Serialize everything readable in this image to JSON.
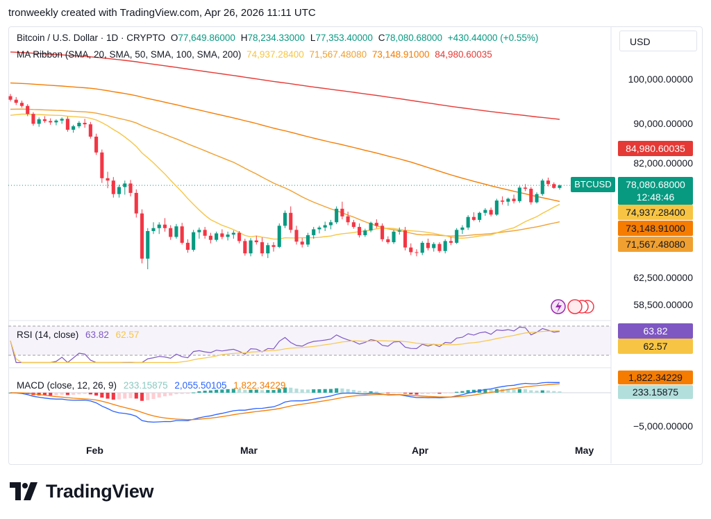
{
  "header": {
    "title": "tronweekly created with TradingView.com, Apr 26, 2026 11:11 UTC"
  },
  "legend": {
    "symbol": "Bitcoin / U.S. Dollar · 1D · CRYPTO",
    "open_label": "O",
    "open": "77,649.86000",
    "high_label": "H",
    "high": "78,234.33000",
    "low_label": "L",
    "low": "77,353.40000",
    "close_label": "C",
    "close": "78,080.68000",
    "change": "+430.44000 (+0.55%)",
    "ma_title": "MA Ribbon (SMA, 20, SMA, 50, SMA, 100, SMA, 200)",
    "ma20": "74,937.28400",
    "ma50": "71,567.48080",
    "ma100": "73,148.91000",
    "ma200": "84,980.60035"
  },
  "currency": "USD",
  "symbol_tag": "BTCUSD",
  "price_tags": {
    "ma200": "84,980.60035",
    "last": "78,080.68000",
    "countdown": "12:48:46",
    "ma20": "74,937.28400",
    "ma100": "73,148.91000",
    "ma50": "71,567.48080"
  },
  "rsi": {
    "title": "RSI (14, close)",
    "value": "63.82",
    "ma": "62.57"
  },
  "macd": {
    "title": "MACD (close, 12, 26, 9)",
    "hist": "233.15875",
    "macd": "2,055.50105",
    "signal": "1,822.34229",
    "axis_low": "−5,000.00000"
  },
  "months": [
    "Feb",
    "Mar",
    "Apr",
    "May"
  ],
  "brand": "TradingView",
  "colors": {
    "up": "#089981",
    "down": "#f23645",
    "ma20": "#f7c543",
    "ma50": "#f0a030",
    "ma100": "#f57c00",
    "ma200": "#e53935",
    "rsi": "#7e57c2"
  },
  "chart_data": {
    "type": "candlestick",
    "title": "Bitcoin / U.S. Dollar · 1D · CRYPTO",
    "y_ticks": [
      100000,
      90000,
      82000,
      62500,
      58500
    ],
    "y_tick_labels": [
      "100,000.00000",
      "90,000.00000",
      "82,000.00000",
      "62,500.00000",
      "58,500.00000"
    ],
    "x_labels": [
      "Feb",
      "Mar",
      "Apr",
      "May"
    ],
    "ylim": [
      57000,
      108000
    ],
    "candles_ohlc": [
      [
        96000,
        96500,
        94800,
        95200
      ],
      [
        95200,
        95800,
        94000,
        94500
      ],
      [
        94500,
        95000,
        93400,
        93800
      ],
      [
        93800,
        94200,
        91500,
        92000
      ],
      [
        92000,
        92400,
        89400,
        89800
      ],
      [
        89800,
        91200,
        89200,
        90800
      ],
      [
        90800,
        91500,
        90000,
        90400
      ],
      [
        90400,
        91000,
        89600,
        90100
      ],
      [
        90100,
        90800,
        89500,
        90500
      ],
      [
        90500,
        91200,
        89800,
        90900
      ],
      [
        90900,
        91400,
        88200,
        88600
      ],
      [
        88600,
        89600,
        88000,
        89300
      ],
      [
        89300,
        90400,
        88900,
        90000
      ],
      [
        90000,
        90900,
        89000,
        89700
      ],
      [
        89700,
        90200,
        86800,
        87200
      ],
      [
        87200,
        87800,
        83500,
        84000
      ],
      [
        84000,
        84600,
        78500,
        79300
      ],
      [
        79300,
        80400,
        77600,
        78900
      ],
      [
        78900,
        79500,
        76000,
        76600
      ],
      [
        76600,
        78200,
        76000,
        77800
      ],
      [
        77800,
        78900,
        76500,
        78400
      ],
      [
        78400,
        79000,
        76200,
        76800
      ],
      [
        76800,
        77400,
        72600,
        73300
      ],
      [
        73300,
        74000,
        64800,
        65600
      ],
      [
        65600,
        70800,
        63800,
        70300
      ],
      [
        70300,
        71800,
        69800,
        70800
      ],
      [
        70800,
        71800,
        69800,
        71400
      ],
      [
        71400,
        72500,
        70200,
        70800
      ],
      [
        70800,
        71300,
        68800,
        69300
      ],
      [
        69300,
        71500,
        69000,
        71100
      ],
      [
        71100,
        71700,
        68000,
        68300
      ],
      [
        68300,
        68900,
        66600,
        67100
      ],
      [
        67100,
        70500,
        66800,
        70100
      ],
      [
        70100,
        70900,
        69000,
        70500
      ],
      [
        70500,
        71000,
        69000,
        69500
      ],
      [
        69500,
        70000,
        68200,
        68800
      ],
      [
        68800,
        70200,
        68500,
        69900
      ],
      [
        69900,
        70600,
        68900,
        69300
      ],
      [
        69300,
        70200,
        68700,
        69700
      ],
      [
        69700,
        70400,
        69000,
        70000
      ],
      [
        70000,
        70300,
        68200,
        68600
      ],
      [
        68600,
        69000,
        66100,
        66500
      ],
      [
        66500,
        69100,
        66000,
        68700
      ],
      [
        68700,
        69500,
        68000,
        68400
      ],
      [
        68400,
        69200,
        66000,
        66500
      ],
      [
        66500,
        68300,
        65700,
        67900
      ],
      [
        67900,
        68400,
        66800,
        67600
      ],
      [
        67600,
        71600,
        67400,
        71200
      ],
      [
        71200,
        73800,
        70800,
        73400
      ],
      [
        73400,
        74500,
        70000,
        70500
      ],
      [
        70500,
        71200,
        68000,
        68500
      ],
      [
        68500,
        69100,
        67500,
        68000
      ],
      [
        68000,
        70000,
        67600,
        69600
      ],
      [
        69600,
        71000,
        69000,
        70600
      ],
      [
        70600,
        71200,
        69900,
        70900
      ],
      [
        70900,
        71900,
        70300,
        71300
      ],
      [
        71300,
        72200,
        70600,
        71800
      ],
      [
        71800,
        74500,
        71500,
        74100
      ],
      [
        74100,
        75300,
        72300,
        72800
      ],
      [
        72800,
        73600,
        71300,
        71800
      ],
      [
        71800,
        72200,
        70700,
        71000
      ],
      [
        71000,
        71600,
        69200,
        69600
      ],
      [
        69600,
        70700,
        69300,
        70400
      ],
      [
        70400,
        71900,
        70100,
        71700
      ],
      [
        71700,
        72300,
        70800,
        71200
      ],
      [
        71200,
        71600,
        68500,
        68900
      ],
      [
        68900,
        69400,
        68100,
        68400
      ],
      [
        68400,
        70500,
        68100,
        70200
      ],
      [
        70200,
        70900,
        69700,
        70400
      ],
      [
        70400,
        71000,
        67000,
        67500
      ],
      [
        67500,
        68200,
        66200,
        66700
      ],
      [
        66700,
        67200,
        66000,
        66600
      ],
      [
        66600,
        68600,
        66200,
        68300
      ],
      [
        68300,
        69000,
        67000,
        67400
      ],
      [
        67400,
        68400,
        66800,
        68100
      ],
      [
        68100,
        68400,
        66600,
        66900
      ],
      [
        66900,
        68900,
        66500,
        68600
      ],
      [
        68600,
        69300,
        67900,
        68300
      ],
      [
        68300,
        70800,
        68100,
        70500
      ],
      [
        70500,
        71300,
        69800,
        70900
      ],
      [
        70900,
        73000,
        70500,
        72700
      ],
      [
        72700,
        73500,
        72000,
        72200
      ],
      [
        72200,
        73600,
        71800,
        73400
      ],
      [
        73400,
        74200,
        72900,
        73900
      ],
      [
        73900,
        74300,
        72800,
        73100
      ],
      [
        73100,
        75800,
        72900,
        75500
      ],
      [
        75500,
        76200,
        74800,
        75300
      ],
      [
        75300,
        76000,
        74600,
        75800
      ],
      [
        75800,
        76500,
        75000,
        75400
      ],
      [
        75400,
        78000,
        75100,
        77700
      ],
      [
        77700,
        78300,
        77100,
        77500
      ],
      [
        77500,
        77800,
        74800,
        75200
      ],
      [
        75200,
        76900,
        75000,
        76600
      ],
      [
        76600,
        79200,
        76300,
        78900
      ],
      [
        78900,
        79400,
        77900,
        78300
      ],
      [
        78300,
        78600,
        77500,
        77650
      ],
      [
        77650,
        78234,
        77353,
        78081
      ]
    ],
    "rsi_values": [
      63.82
    ],
    "macd_values": {
      "macd": 2055.50105,
      "signal": 1822.34229,
      "hist": 233.15875
    },
    "grid": false,
    "legend_placement": "top-left"
  }
}
